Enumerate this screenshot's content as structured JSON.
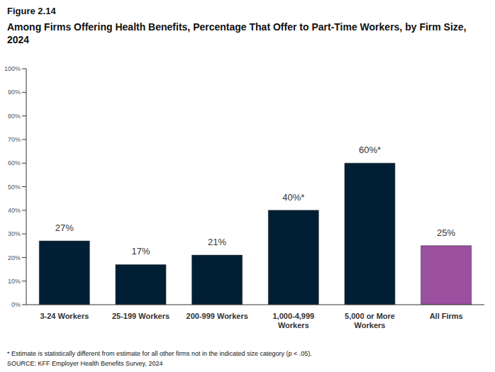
{
  "chart_data": {
    "type": "bar",
    "title": "Figure 2.14",
    "subtitle": "Among Firms Offering Health Benefits, Percentage That Offer to Part-Time Workers, by Firm Size, 2024",
    "categories": [
      "3-24 Workers",
      "25-199 Workers",
      "200-999 Workers",
      "1,000-4,999 Workers",
      "5,000 or More Workers",
      "All Firms"
    ],
    "values": [
      27,
      17,
      21,
      40,
      60,
      25
    ],
    "value_labels": [
      "27%",
      "17%",
      "21%",
      "40%*",
      "60%*",
      "25%"
    ],
    "colors": [
      "#001f35",
      "#001f35",
      "#001f35",
      "#001f35",
      "#001f35",
      "#9b4f9f"
    ],
    "data_labels": true,
    "ylim": [
      0,
      100
    ],
    "yticks": [
      {
        "value": 0,
        "label": "0%"
      },
      {
        "value": 10,
        "label": "10%"
      },
      {
        "value": 20,
        "label": "20%"
      },
      {
        "value": 30,
        "label": "30%"
      },
      {
        "value": 40,
        "label": "40%"
      },
      {
        "value": 50,
        "label": "50%"
      },
      {
        "value": 60,
        "label": "60%"
      },
      {
        "value": 70,
        "label": "70%"
      },
      {
        "value": 80,
        "label": "80%"
      },
      {
        "value": 90,
        "label": "90%"
      },
      {
        "value": 100,
        "label": "100%"
      }
    ],
    "grid": false,
    "annotations": [
      "* Estimate is statistically different from estimate for all other firms not in the indicated size category (p < .05).",
      "SOURCE: KFF Employer Health Benefits Survey, 2024"
    ]
  }
}
